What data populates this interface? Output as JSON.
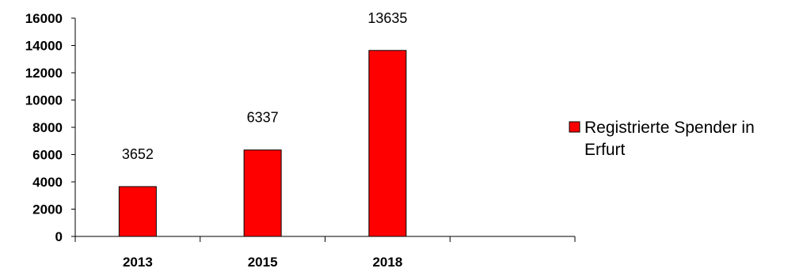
{
  "chart_data": {
    "type": "bar",
    "categories": [
      "2013",
      "2015",
      "2018",
      ""
    ],
    "series": [
      {
        "name": "Registrierte Spender in Erfurt",
        "values": [
          3652,
          6337,
          13635,
          null
        ],
        "color": "#ff0000"
      }
    ],
    "data_labels": [
      "3652",
      "6337",
      "13635",
      ""
    ],
    "y_ticks": [
      "0",
      "2000",
      "4000",
      "6000",
      "8000",
      "10000",
      "12000",
      "14000",
      "16000"
    ],
    "ylim": [
      0,
      16000
    ],
    "grid": false,
    "legend_position": "right",
    "legend": {
      "line1": "Registrierte Spender in",
      "line2": "Erfurt"
    }
  }
}
